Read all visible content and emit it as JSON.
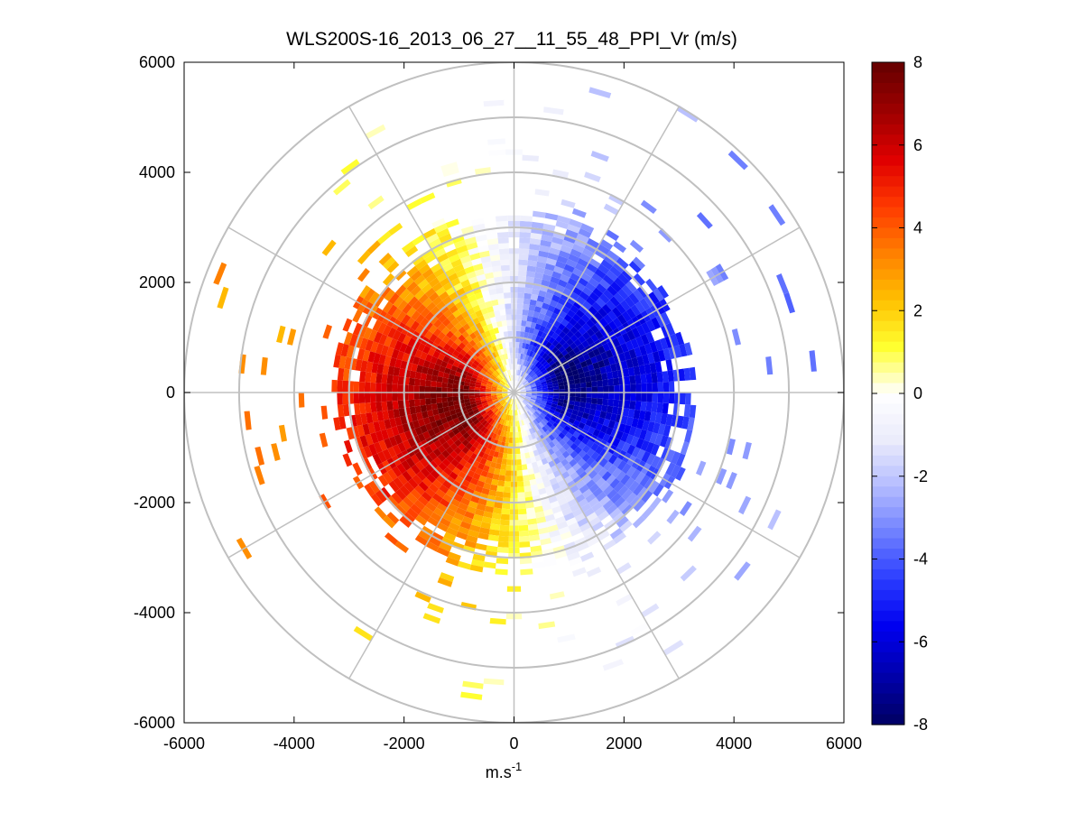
{
  "chart_data": {
    "type": "heatmap",
    "subtype": "polar-ppi",
    "title": "WLS200S-16_2013_06_27__11_55_48_PPI_Vr (m/s)",
    "xlabel_base": "m.s",
    "xlabel_sup": "-1",
    "ylabel": "",
    "xlim": [
      -6000,
      6000
    ],
    "ylim": [
      -6000,
      6000
    ],
    "x_ticks": [
      -6000,
      -4000,
      -2000,
      0,
      2000,
      4000,
      6000
    ],
    "x_tick_labels": [
      "-6000",
      "-4000",
      "-2000",
      "0",
      "2000",
      "4000",
      "6000"
    ],
    "y_ticks": [
      6000,
      4000,
      2000,
      0,
      -2000,
      -4000,
      -6000
    ],
    "y_tick_labels": [
      "6000",
      "4000",
      "2000",
      "0",
      "-2000",
      "-4000",
      "-6000"
    ],
    "range_rings": [
      1000,
      2000,
      3000,
      4000,
      5000,
      6000
    ],
    "spoke_angles_deg": [
      0,
      30,
      60,
      90,
      120,
      150,
      180,
      210,
      240,
      270,
      300,
      330
    ],
    "grid": true,
    "field": {
      "description": "radial velocity Vr (m/s) vs range and azimuth",
      "peak_speed": 7.2,
      "positive_sector": "west",
      "negative_sector": "east",
      "dense_coverage_max_range": 3300,
      "sparse_coverage_max_range": 6000
    },
    "colorbar": {
      "range": [
        -8,
        8
      ],
      "ticks": [
        8,
        6,
        4,
        2,
        0,
        -2,
        -4,
        -6,
        -8
      ],
      "tick_labels": [
        "8",
        "6",
        "4",
        "2",
        "0",
        "-2",
        "-4",
        "-6",
        "-8"
      ],
      "colormap": [
        "#00006a",
        "#0000b0",
        "#0000f0",
        "#2a3cff",
        "#6f80ff",
        "#b4bcff",
        "#ebecfb",
        "#ffffff",
        "#ffff30",
        "#ffc000",
        "#ff8000",
        "#ff3a00",
        "#e00000",
        "#a00000",
        "#6a0000"
      ]
    }
  }
}
